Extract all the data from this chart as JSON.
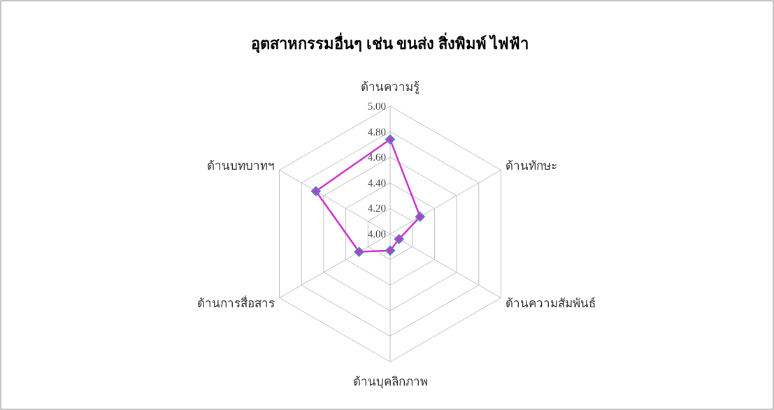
{
  "chart_data": {
    "type": "radar",
    "title": "อุตสาหกรรมอื่นๆ เช่น ขนส่ง สิ่งพิมพ์ ไฟฟ้า",
    "categories": [
      "ด้านความรู้",
      "ด้านทักษะ",
      "ด้านความสัมพันธ์",
      "ด้านบุคลิกภาพ",
      "ด้านการสื่อสาร",
      "ด้านบทบาทฯ"
    ],
    "series": [
      {
        "color": "#cc33cc",
        "values": [
          4.74,
          4.27,
          4.08,
          4.13,
          4.28,
          4.67
        ]
      }
    ],
    "ylim": [
      4,
      5
    ],
    "yticks": [
      {
        "value": 4,
        "label": "4.00"
      },
      {
        "value": 4.2,
        "label": "4.20"
      },
      {
        "value": 4.4,
        "label": "4.40"
      },
      {
        "value": 4.6,
        "label": "4.60"
      },
      {
        "value": 4.8,
        "label": "4.80"
      },
      {
        "value": 5,
        "label": "5.00"
      }
    ],
    "grid": true,
    "marker": "diamond",
    "line_style": "solid"
  }
}
